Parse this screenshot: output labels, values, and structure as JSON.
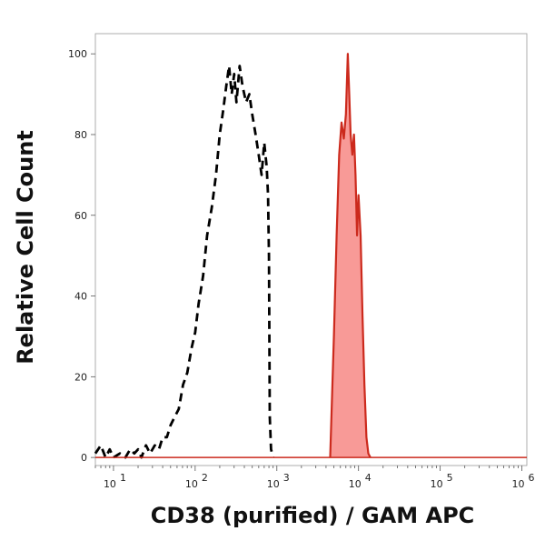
{
  "chart_data": {
    "type": "histogram",
    "xlabel": "CD38 (purified) / GAM APC",
    "ylabel": "Relative Cell Count",
    "x_scale": "log",
    "xlim": [
      6,
      1150000
    ],
    "ylim": [
      -2,
      105
    ],
    "y_ticks": [
      0,
      20,
      40,
      60,
      80,
      100
    ],
    "x_ticks": [
      {
        "value": 10,
        "label": "10",
        "exp": "1"
      },
      {
        "value": 100,
        "label": "10",
        "exp": "2"
      },
      {
        "value": 1000,
        "label": "10",
        "exp": "3"
      },
      {
        "value": 10000,
        "label": "10",
        "exp": "4"
      },
      {
        "value": 100000,
        "label": "10",
        "exp": "5"
      },
      {
        "value": 1000000,
        "label": "10",
        "exp": "6"
      }
    ],
    "grid": false,
    "colors": {
      "control": "#000000",
      "stained_line": "#cc2a1d",
      "stained_fill": "#f89a97"
    },
    "series": [
      {
        "style": "dashed",
        "x": [
          6,
          7,
          8,
          9,
          10,
          12,
          14,
          16,
          18,
          20,
          22,
          25,
          28,
          32,
          36,
          40,
          45,
          50,
          56,
          63,
          71,
          80,
          90,
          100,
          110,
          125,
          140,
          160,
          180,
          200,
          220,
          240,
          260,
          280,
          300,
          320,
          350,
          380,
          420,
          460,
          500,
          550,
          600,
          650,
          700,
          750,
          780,
          800,
          820,
          850,
          900
        ],
        "y": [
          1,
          3,
          0,
          2,
          0,
          1,
          0,
          2,
          1,
          2,
          0,
          3,
          1,
          3,
          2,
          5,
          5,
          8,
          10,
          12,
          18,
          21,
          27,
          31,
          38,
          45,
          55,
          62,
          70,
          80,
          86,
          92,
          97,
          90,
          95,
          88,
          97,
          92,
          88,
          90,
          85,
          80,
          75,
          70,
          78,
          72,
          65,
          50,
          10,
          2,
          0
        ]
      },
      {
        "style": "filled",
        "x": [
          4500,
          5000,
          5400,
          5800,
          6200,
          6600,
          7000,
          7400,
          7700,
          8000,
          8400,
          8800,
          9200,
          9600,
          10000,
          10600,
          11200,
          11800,
          12500,
          13200,
          14000
        ],
        "y": [
          0,
          30,
          55,
          75,
          83,
          79,
          85,
          100,
          90,
          80,
          75,
          80,
          70,
          55,
          65,
          55,
          35,
          18,
          5,
          1,
          0
        ]
      }
    ]
  }
}
